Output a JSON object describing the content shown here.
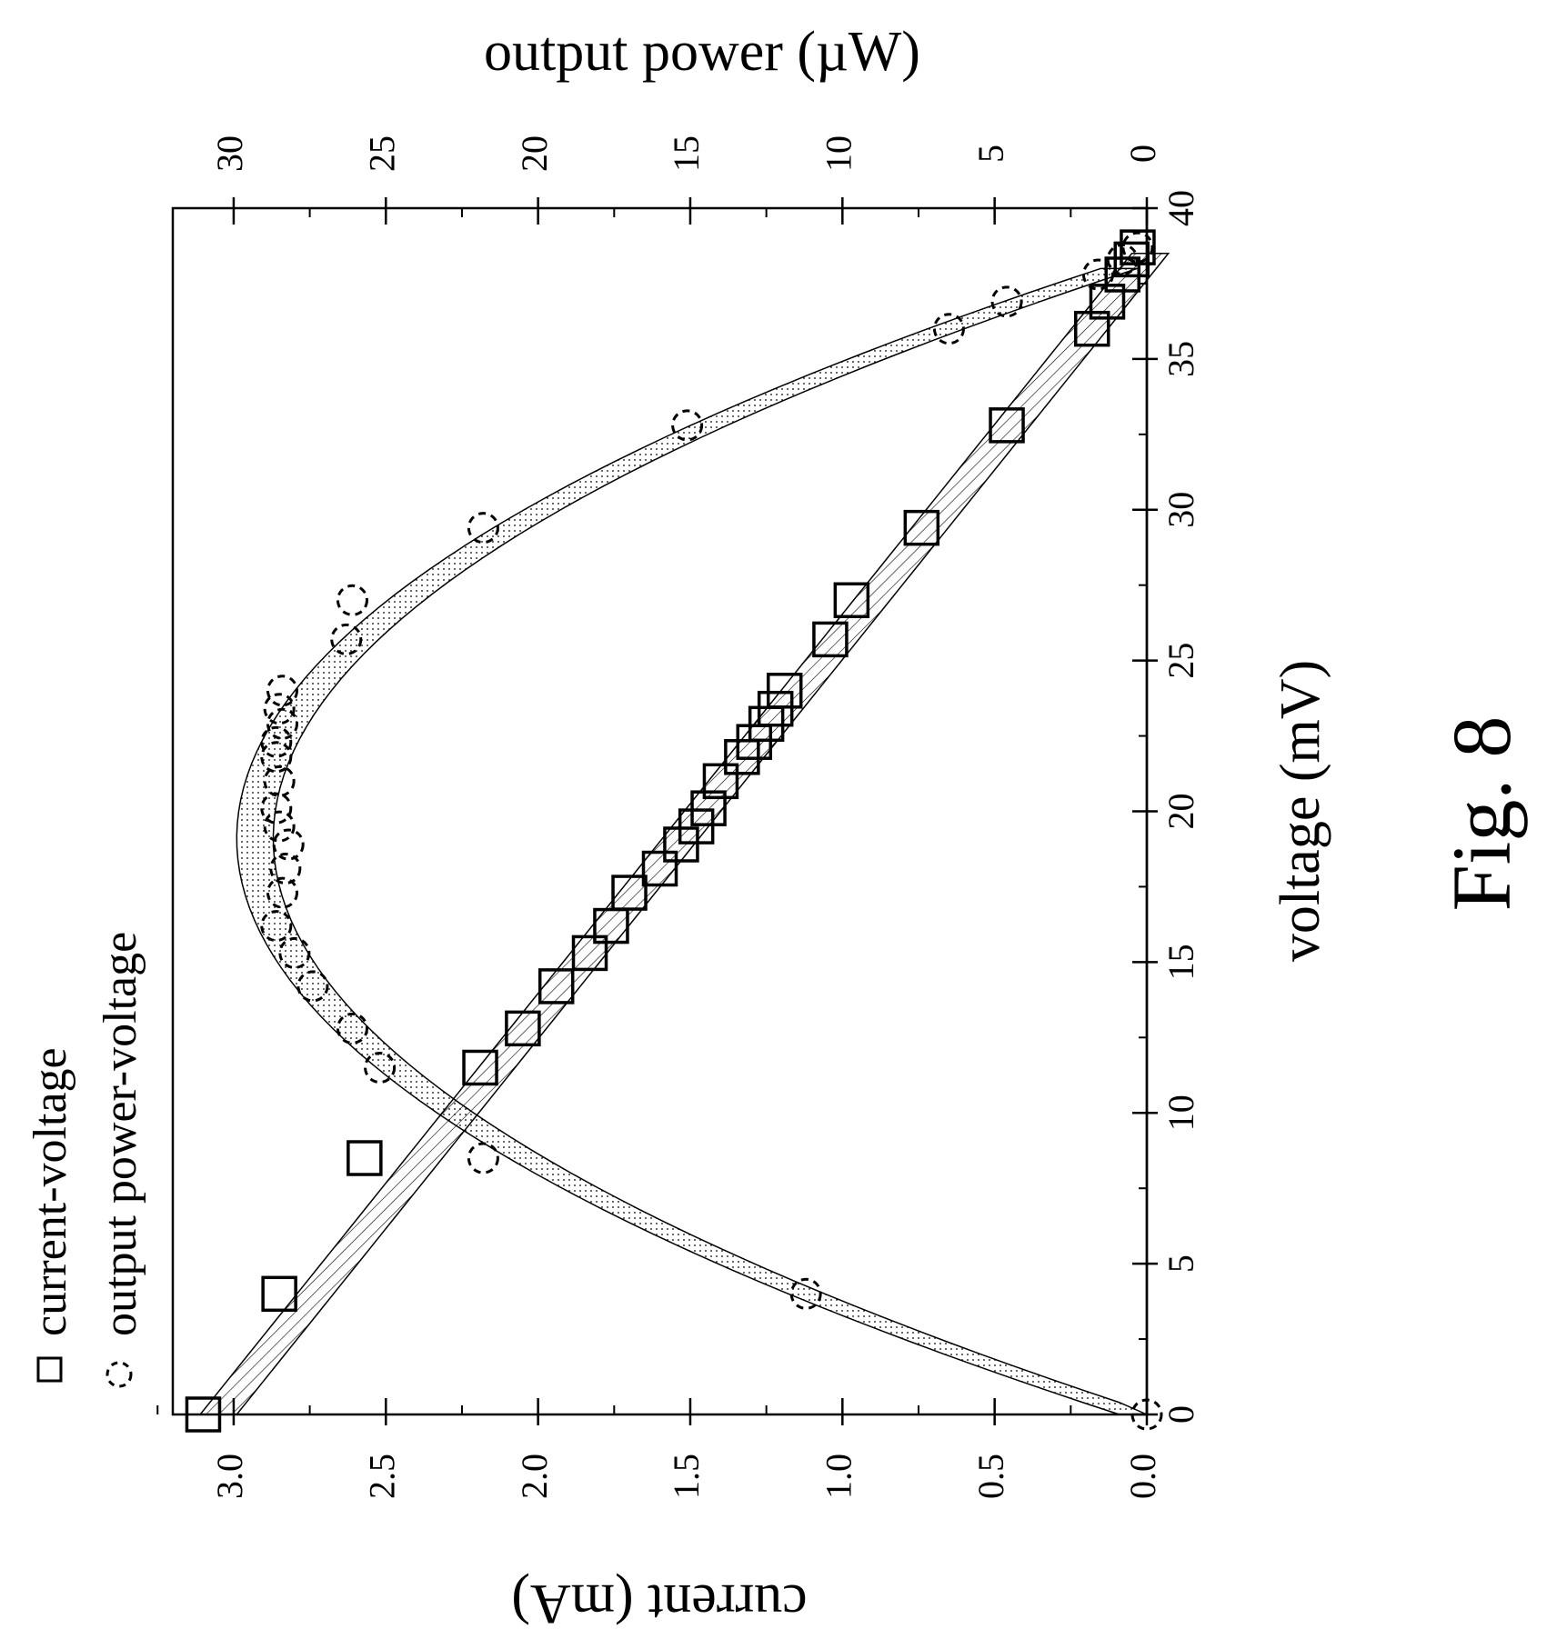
{
  "figure_label": "Fig. 8",
  "chart_data": {
    "type": "scatter",
    "orientation": "rotated-90-clockwise",
    "x_axis": {
      "label": "voltage (mV)",
      "range": [
        0,
        40
      ],
      "ticks": [
        "0",
        "5",
        "10",
        "15",
        "20",
        "25",
        "30",
        "35",
        "40"
      ]
    },
    "y_axis_left": {
      "label": "current (mA)",
      "range": [
        0,
        3.2
      ],
      "ticks": [
        "0.0",
        "0.5",
        "1.0",
        "1.5",
        "2.0",
        "2.5",
        "3.0"
      ]
    },
    "y_axis_right": {
      "label": "output power (µW)",
      "range": [
        0,
        32
      ],
      "ticks": [
        "0",
        "5",
        "10",
        "15",
        "20",
        "25",
        "30"
      ]
    },
    "legend": {
      "placement": "top-left",
      "entries": [
        "current-voltage",
        "output power-voltage"
      ]
    },
    "grid": false,
    "series": [
      {
        "name": "current-voltage",
        "marker": "square",
        "axis": "left",
        "x": [
          0,
          4,
          8.5,
          11.5,
          12.8,
          14.2,
          15.3,
          16.2,
          17.3,
          18.1,
          18.9,
          19.5,
          20.1,
          21.0,
          21.8,
          22.3,
          22.9,
          23.4,
          24.0,
          25.7,
          27.0,
          29.4,
          32.8,
          36.0,
          36.9,
          37.8,
          38.3,
          38.7
        ],
        "y": [
          3.1,
          2.85,
          2.57,
          2.19,
          2.05,
          1.94,
          1.83,
          1.76,
          1.7,
          1.6,
          1.53,
          1.48,
          1.44,
          1.4,
          1.33,
          1.29,
          1.25,
          1.22,
          1.19,
          1.04,
          0.97,
          0.74,
          0.46,
          0.18,
          0.13,
          0.08,
          0.05,
          0.03
        ]
      },
      {
        "name": "output power-voltage",
        "marker": "dashed-circle",
        "axis": "right",
        "x": [
          0,
          4,
          8.5,
          11.5,
          12.8,
          14.2,
          15.3,
          16.2,
          17.3,
          18.1,
          18.9,
          19.5,
          20.1,
          21.0,
          21.8,
          22.3,
          22.9,
          23.4,
          24.0,
          25.7,
          27.0,
          29.4,
          32.8,
          36.0,
          36.9,
          37.8,
          38.3,
          38.7
        ],
        "y": [
          0,
          11.2,
          21.8,
          25.2,
          26.1,
          27.4,
          28.0,
          28.6,
          28.4,
          28.3,
          28.2,
          28.5,
          28.6,
          28.5,
          28.6,
          28.6,
          28.4,
          28.5,
          28.4,
          26.3,
          26.1,
          21.8,
          15.1,
          6.5,
          4.6,
          1.6,
          0.8,
          0.3
        ]
      }
    ],
    "fits": [
      {
        "series": "current-voltage",
        "form": "linear",
        "intercept": 3.05,
        "slope": -0.0795,
        "band": "hatched"
      },
      {
        "series": "output power-voltage",
        "form": "parabolic",
        "peak_x": 19.1,
        "peak_y": 29.3,
        "zero_x": 38.3,
        "band": "dotted"
      }
    ]
  }
}
